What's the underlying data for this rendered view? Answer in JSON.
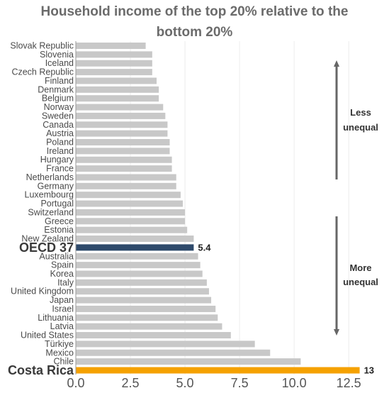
{
  "chart_data": {
    "type": "bar",
    "orientation": "horizontal",
    "title": "Household income of the top 20% relative to the bottom 20%",
    "title_lines": [
      "Household income of the top 20% relative to the",
      "bottom 20%"
    ],
    "categories": [
      "Slovak Republic",
      "Slovenia",
      "Iceland",
      "Czech Republic",
      "Finland",
      "Denmark",
      "Belgium",
      "Norway",
      "Sweden",
      "Canada",
      "Austria",
      "Poland",
      "Ireland",
      "Hungary",
      "France",
      "Netherlands",
      "Germany",
      "Luxembourg",
      "Portugal",
      "Switzerland",
      "Greece",
      "Estonia",
      "New Zealand",
      "OECD 37",
      "Australia",
      "Spain",
      "Korea",
      "Italy",
      "United Kingdom",
      "Japan",
      "Israel",
      "Lithuania",
      "Latvia",
      "United States",
      "Türkiye",
      "Mexico",
      "Chile",
      "Costa Rica"
    ],
    "values": [
      3.2,
      3.5,
      3.5,
      3.5,
      3.7,
      3.8,
      3.8,
      4.0,
      4.1,
      4.2,
      4.2,
      4.3,
      4.3,
      4.4,
      4.4,
      4.6,
      4.6,
      4.8,
      4.9,
      5.0,
      5.0,
      5.1,
      5.4,
      5.4,
      5.6,
      5.7,
      5.8,
      6.0,
      6.1,
      6.2,
      6.4,
      6.5,
      6.7,
      7.1,
      8.2,
      8.9,
      10.3,
      13.0
    ],
    "highlight": {
      "OECD 37": {
        "color": "#2e4a6b",
        "label": "5.4"
      },
      "Costa Rica": {
        "color": "#f5a100",
        "label": "13"
      }
    },
    "bar_color": "#c8c8c8",
    "xlim": [
      0,
      13.5
    ],
    "xticks": [
      0,
      2.5,
      5,
      7.5,
      10,
      12.5
    ],
    "xtick_labels": [
      "0.0",
      "2.5",
      "5.0",
      "7.5",
      "10.0",
      "12.5"
    ],
    "grid": "vertical",
    "annotations": {
      "less": [
        "Less",
        "unequal"
      ],
      "more": [
        "More",
        "unequal"
      ]
    },
    "arrow_color": "#666666"
  }
}
